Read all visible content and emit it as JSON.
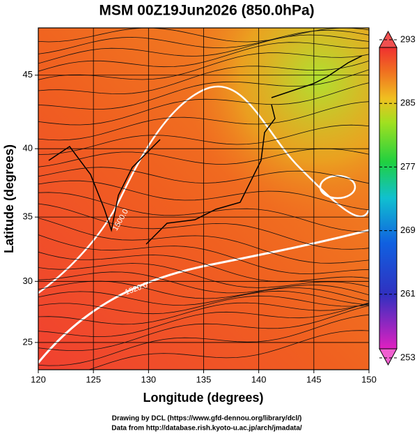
{
  "title": "MSM 00Z19Jun2026 (850.0hPa)",
  "x_label": "Longitude (degrees)",
  "y_label": "Latitude  (degrees)",
  "xlim": [
    120,
    150
  ],
  "xticks": [
    120,
    125,
    130,
    135,
    140,
    145,
    150
  ],
  "ylim": [
    22.7,
    48
  ],
  "yticks": [
    25,
    30,
    35,
    40,
    45
  ],
  "colorbar": {
    "lim": [
      253,
      293
    ],
    "ticks": [
      253,
      261,
      269,
      277,
      285,
      293
    ]
  },
  "contour_labels": [
    "1500.0",
    "1520.0"
  ],
  "credits": [
    "Drawing by DCL (https://www.gfd-dennou.org/library/dcl/)",
    "Data from http://database.rish.kyoto-u.ac.jp/arch/jmadata/"
  ]
}
